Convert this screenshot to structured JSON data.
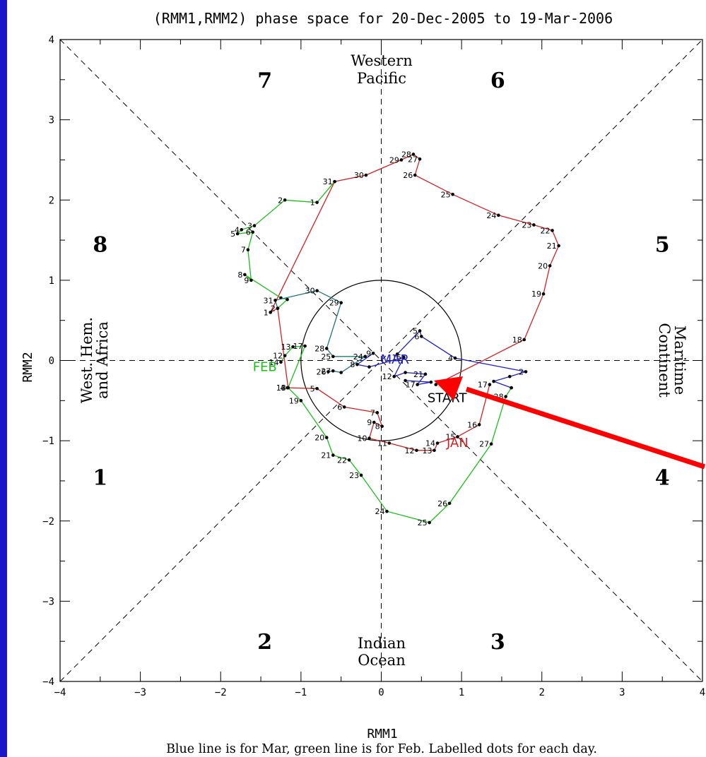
{
  "chart_data": {
    "type": "line",
    "title": "(RMM1,RMM2) phase space for 20-Dec-2005 to 19-Mar-2006",
    "xlabel": "RMM1",
    "ylabel": "RMM2",
    "xlim": [
      -4,
      4
    ],
    "ylim": [
      -4,
      4
    ],
    "xticks": [
      "−4",
      "−3",
      "−2",
      "−1",
      "0",
      "1",
      "2",
      "3",
      "4"
    ],
    "yticks": [
      "−4",
      "−3",
      "−2",
      "−1",
      "0",
      "1",
      "2",
      "3",
      "4"
    ],
    "caption": "Blue line is for Mar, green line is for Feb. Labelled dots for each day.",
    "phases": [
      {
        "label": "1",
        "x": -3.5,
        "y": -1.45
      },
      {
        "label": "2",
        "x": -1.45,
        "y": -3.5
      },
      {
        "label": "3",
        "x": 1.45,
        "y": -3.5
      },
      {
        "label": "4",
        "x": 3.5,
        "y": -1.45
      },
      {
        "label": "5",
        "x": 3.5,
        "y": 1.45
      },
      {
        "label": "6",
        "x": 1.45,
        "y": 3.5
      },
      {
        "label": "7",
        "x": -1.45,
        "y": 3.5
      },
      {
        "label": "8",
        "x": -3.5,
        "y": 1.45
      }
    ],
    "regions": {
      "top": [
        "Western",
        "Pacific"
      ],
      "bottom": [
        "Indian",
        "Ocean"
      ],
      "left": [
        "West. Hem.",
        "and Africa"
      ],
      "right": [
        "Maritime",
        "Continent"
      ]
    },
    "month_labels": [
      {
        "text": "JAN",
        "x": 0.95,
        "y": -1.08,
        "color": "#d42020"
      },
      {
        "text": "FEB",
        "x": -1.45,
        "y": -0.13,
        "color": "#18c018"
      },
      {
        "text": "MAR",
        "x": 0.17,
        "y": -0.04,
        "color": "#2020c8"
      },
      {
        "text": "START",
        "x": 0.82,
        "y": -0.52,
        "color": "#000000"
      }
    ],
    "series": [
      {
        "color": "#d42020",
        "points": [
          {
            "day": "",
            "x": 0.68,
            "y": -0.3
          },
          {
            "day": "18",
            "x": 1.78,
            "y": 0.26
          },
          {
            "day": "19",
            "x": 2.02,
            "y": 0.83
          },
          {
            "day": "20",
            "x": 2.1,
            "y": 1.18
          },
          {
            "day": "21",
            "x": 2.21,
            "y": 1.43
          },
          {
            "day": "22",
            "x": 2.13,
            "y": 1.62
          },
          {
            "day": "23",
            "x": 1.9,
            "y": 1.69
          },
          {
            "day": "24",
            "x": 1.46,
            "y": 1.81
          },
          {
            "day": "25",
            "x": 0.89,
            "y": 2.07
          },
          {
            "day": "26",
            "x": 0.42,
            "y": 2.31
          },
          {
            "day": "27",
            "x": 0.48,
            "y": 2.51
          },
          {
            "day": "28",
            "x": 0.4,
            "y": 2.57
          },
          {
            "day": "29",
            "x": 0.25,
            "y": 2.5
          },
          {
            "day": "30",
            "x": -0.19,
            "y": 2.31
          },
          {
            "day": "31",
            "x": -0.58,
            "y": 2.23
          },
          {
            "day": "1",
            "x": -1.38,
            "y": 0.6
          },
          {
            "day": "2",
            "x": -1.29,
            "y": 0.65
          },
          {
            "day": "3",
            "x": -1.16,
            "y": -0.34
          },
          {
            "day": "4",
            "x": -1.17,
            "y": -0.34
          },
          {
            "day": "5",
            "x": -0.8,
            "y": -0.35
          },
          {
            "day": "6",
            "x": -0.46,
            "y": -0.58
          },
          {
            "day": "7",
            "x": -0.05,
            "y": -0.65
          },
          {
            "day": "8",
            "x": 0.01,
            "y": -0.82
          },
          {
            "day": "9",
            "x": -0.09,
            "y": -0.77
          },
          {
            "day": "10",
            "x": -0.15,
            "y": -0.97
          },
          {
            "day": "11",
            "x": 0.1,
            "y": -1.03
          },
          {
            "day": "12",
            "x": 0.44,
            "y": -1.12
          },
          {
            "day": "13",
            "x": 0.66,
            "y": -1.12
          },
          {
            "day": "14",
            "x": 0.7,
            "y": -1.03
          },
          {
            "day": "15",
            "x": 0.95,
            "y": -0.95
          },
          {
            "day": "16",
            "x": 1.22,
            "y": -0.8
          },
          {
            "day": "17",
            "x": 1.35,
            "y": -0.3
          }
        ]
      },
      {
        "color": "#18c018",
        "points": [
          {
            "day": "",
            "x": -1.29,
            "y": 0.65
          },
          {
            "day": "",
            "x": -1.17,
            "y": 0.76
          },
          {
            "day": "",
            "x": -1.25,
            "y": 0.78
          },
          {
            "day": "8",
            "x": -1.7,
            "y": 1.07
          },
          {
            "day": "9",
            "x": -1.62,
            "y": 1.0
          },
          {
            "day": "7",
            "x": -1.66,
            "y": 1.38
          },
          {
            "day": "6",
            "x": -1.6,
            "y": 1.6
          },
          {
            "day": "5",
            "x": -1.79,
            "y": 1.58
          },
          {
            "day": "4",
            "x": -1.74,
            "y": 1.63
          },
          {
            "day": "3",
            "x": -1.58,
            "y": 1.68
          },
          {
            "day": "2",
            "x": -1.2,
            "y": 2.0
          },
          {
            "day": "1",
            "x": -0.8,
            "y": 1.97
          },
          {
            "day": "",
            "x": -0.58,
            "y": 2.23
          }
        ]
      },
      {
        "color": "#18c018",
        "points": [
          {
            "day": "",
            "x": -1.16,
            "y": -0.34
          },
          {
            "day": "19",
            "x": -1.0,
            "y": -0.5
          },
          {
            "day": "20",
            "x": -0.68,
            "y": -0.96
          },
          {
            "day": "21",
            "x": -0.6,
            "y": -1.18
          },
          {
            "day": "22",
            "x": -0.4,
            "y": -1.24
          },
          {
            "day": "23",
            "x": -0.25,
            "y": -1.43
          },
          {
            "day": "24",
            "x": 0.07,
            "y": -1.88
          },
          {
            "day": "25",
            "x": 0.6,
            "y": -2.02
          },
          {
            "day": "26",
            "x": 0.85,
            "y": -1.78
          },
          {
            "day": "27",
            "x": 1.37,
            "y": -1.04
          },
          {
            "day": "28",
            "x": 1.55,
            "y": -0.45
          },
          {
            "day": "",
            "x": 1.62,
            "y": -0.34
          }
        ]
      },
      {
        "color": "#207878",
        "points": [
          {
            "day": "",
            "x": -1.29,
            "y": 0.65
          },
          {
            "day": "31",
            "x": -1.32,
            "y": 0.75
          },
          {
            "day": "30",
            "x": -0.8,
            "y": 0.87
          },
          {
            "day": "29",
            "x": -0.5,
            "y": 0.72
          },
          {
            "day": "28",
            "x": -0.68,
            "y": 0.15
          },
          {
            "day": "25",
            "x": -0.6,
            "y": 0.05
          },
          {
            "day": "24",
            "x": -0.2,
            "y": 0.05
          },
          {
            "day": "",
            "x": -0.5,
            "y": -0.15
          },
          {
            "day": "27",
            "x": -0.6,
            "y": -0.13
          },
          {
            "day": "26",
            "x": -0.66,
            "y": -0.14
          }
        ]
      },
      {
        "color": "#2020c8",
        "points": [
          {
            "day": "",
            "x": 0.2,
            "y": 0.08
          },
          {
            "day": "5",
            "x": 0.48,
            "y": 0.37
          },
          {
            "day": "6",
            "x": 0.5,
            "y": 0.3
          },
          {
            "day": "4",
            "x": 0.92,
            "y": 0.03
          },
          {
            "day": "2",
            "x": 1.8,
            "y": -0.14
          },
          {
            "day": "",
            "x": 1.6,
            "y": -0.2
          },
          {
            "day": "",
            "x": 1.4,
            "y": -0.26
          },
          {
            "day": "",
            "x": 1.62,
            "y": -0.34
          }
        ]
      },
      {
        "color": "#2020c8",
        "points": [
          {
            "day": "9",
            "x": -0.1,
            "y": 0.09
          },
          {
            "day": "8",
            "x": -0.3,
            "y": -0.05
          },
          {
            "day": "",
            "x": -0.15,
            "y": -0.08
          },
          {
            "day": "15",
            "x": 0.28,
            "y": 0.04
          },
          {
            "day": "12",
            "x": 0.16,
            "y": -0.2
          },
          {
            "day": "",
            "x": 0.3,
            "y": -0.15
          },
          {
            "day": "21",
            "x": 0.55,
            "y": -0.17
          },
          {
            "day": "17",
            "x": 0.45,
            "y": -0.3
          },
          {
            "day": "",
            "x": 0.62,
            "y": -0.27
          },
          {
            "day": "",
            "x": 0.3,
            "y": -0.25
          }
        ]
      },
      {
        "color": "#18c018",
        "points": [
          {
            "day": "14",
            "x": -1.25,
            "y": -0.02
          },
          {
            "day": "12",
            "x": -1.2,
            "y": 0.06
          },
          {
            "day": "13",
            "x": -1.1,
            "y": 0.17
          },
          {
            "day": "17",
            "x": -0.95,
            "y": 0.18
          },
          {
            "day": "18",
            "x": -1.16,
            "y": -0.34
          }
        ]
      }
    ]
  },
  "annotation_arrow": {
    "color": "#ff0000"
  }
}
